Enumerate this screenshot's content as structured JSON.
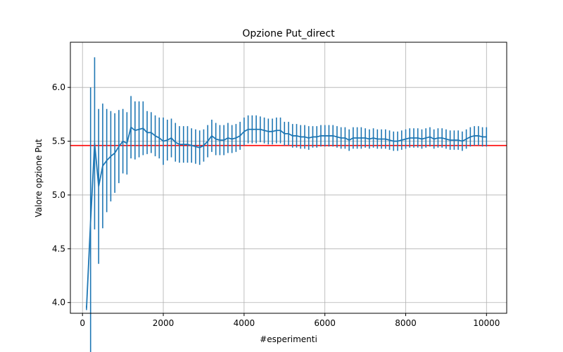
{
  "chart_data": {
    "type": "line",
    "title": "Opzione Put_direct",
    "xlabel": "#esperimenti",
    "ylabel": "Valore opzione Put",
    "xlim": [
      -300,
      10500
    ],
    "ylim": [
      3.9,
      6.42
    ],
    "x_ticks": [
      0,
      2000,
      4000,
      6000,
      8000,
      10000
    ],
    "y_ticks": [
      4.0,
      4.5,
      5.0,
      5.5,
      6.0
    ],
    "x_tick_labels": [
      "0",
      "2000",
      "4000",
      "6000",
      "8000",
      "10000"
    ],
    "y_tick_labels": [
      "4.0",
      "4.5",
      "5.0",
      "5.5",
      "6.0"
    ],
    "grid": true,
    "legend": "none",
    "reference_line": {
      "y": 5.46,
      "color": "#ff0000"
    },
    "series": [
      {
        "color": "#1f77b4",
        "x": [
          100,
          200,
          300,
          400,
          500,
          600,
          700,
          800,
          900,
          1000,
          1100,
          1200,
          1300,
          1400,
          1500,
          1600,
          1700,
          1800,
          1900,
          2000,
          2100,
          2200,
          2300,
          2400,
          2500,
          2600,
          2700,
          2800,
          2900,
          3000,
          3100,
          3200,
          3300,
          3400,
          3500,
          3600,
          3700,
          3800,
          3900,
          4000,
          4100,
          4200,
          4300,
          4400,
          4500,
          4600,
          4700,
          4800,
          4900,
          5000,
          5100,
          5200,
          5300,
          5400,
          5500,
          5600,
          5700,
          5800,
          5900,
          6000,
          6100,
          6200,
          6300,
          6400,
          6500,
          6600,
          6700,
          6800,
          6900,
          7000,
          7100,
          7200,
          7300,
          7400,
          7500,
          7600,
          7700,
          7800,
          7900,
          8000,
          8100,
          8200,
          8300,
          8400,
          8500,
          8600,
          8700,
          8800,
          8900,
          9000,
          9100,
          9200,
          9300,
          9400,
          9500,
          9600,
          9700,
          9800,
          9900,
          10000
        ],
        "y": [
          3.95,
          4.75,
          5.48,
          5.08,
          5.27,
          5.32,
          5.36,
          5.39,
          5.45,
          5.5,
          5.48,
          5.63,
          5.6,
          5.61,
          5.62,
          5.58,
          5.58,
          5.55,
          5.53,
          5.5,
          5.51,
          5.53,
          5.49,
          5.47,
          5.47,
          5.47,
          5.46,
          5.45,
          5.44,
          5.46,
          5.5,
          5.55,
          5.52,
          5.51,
          5.51,
          5.53,
          5.52,
          5.53,
          5.55,
          5.59,
          5.61,
          5.61,
          5.61,
          5.61,
          5.6,
          5.59,
          5.59,
          5.6,
          5.6,
          5.57,
          5.57,
          5.55,
          5.55,
          5.54,
          5.54,
          5.53,
          5.54,
          5.54,
          5.55,
          5.55,
          5.55,
          5.55,
          5.54,
          5.53,
          5.53,
          5.51,
          5.53,
          5.53,
          5.53,
          5.53,
          5.52,
          5.53,
          5.52,
          5.52,
          5.52,
          5.51,
          5.5,
          5.5,
          5.51,
          5.52,
          5.53,
          5.53,
          5.53,
          5.52,
          5.53,
          5.54,
          5.52,
          5.53,
          5.53,
          5.52,
          5.51,
          5.51,
          5.51,
          5.5,
          5.52,
          5.54,
          5.55,
          5.55,
          5.54,
          5.54
        ],
        "err": [
          0.02,
          1.25,
          0.8,
          0.72,
          0.58,
          0.48,
          0.42,
          0.37,
          0.34,
          0.3,
          0.29,
          0.29,
          0.27,
          0.26,
          0.25,
          0.2,
          0.19,
          0.19,
          0.19,
          0.22,
          0.19,
          0.18,
          0.18,
          0.17,
          0.17,
          0.17,
          0.16,
          0.16,
          0.16,
          0.15,
          0.15,
          0.15,
          0.15,
          0.14,
          0.14,
          0.14,
          0.13,
          0.13,
          0.13,
          0.13,
          0.13,
          0.13,
          0.13,
          0.12,
          0.12,
          0.12,
          0.12,
          0.12,
          0.12,
          0.11,
          0.11,
          0.11,
          0.11,
          0.11,
          0.11,
          0.11,
          0.1,
          0.1,
          0.1,
          0.1,
          0.1,
          0.1,
          0.1,
          0.1,
          0.1,
          0.1,
          0.1,
          0.1,
          0.1,
          0.09,
          0.09,
          0.09,
          0.09,
          0.09,
          0.09,
          0.09,
          0.09,
          0.09,
          0.09,
          0.09,
          0.09,
          0.09,
          0.09,
          0.09,
          0.09,
          0.09,
          0.09,
          0.09,
          0.09,
          0.09,
          0.09,
          0.09,
          0.09,
          0.09,
          0.09,
          0.09,
          0.09,
          0.09,
          0.09,
          0.09
        ]
      }
    ]
  }
}
